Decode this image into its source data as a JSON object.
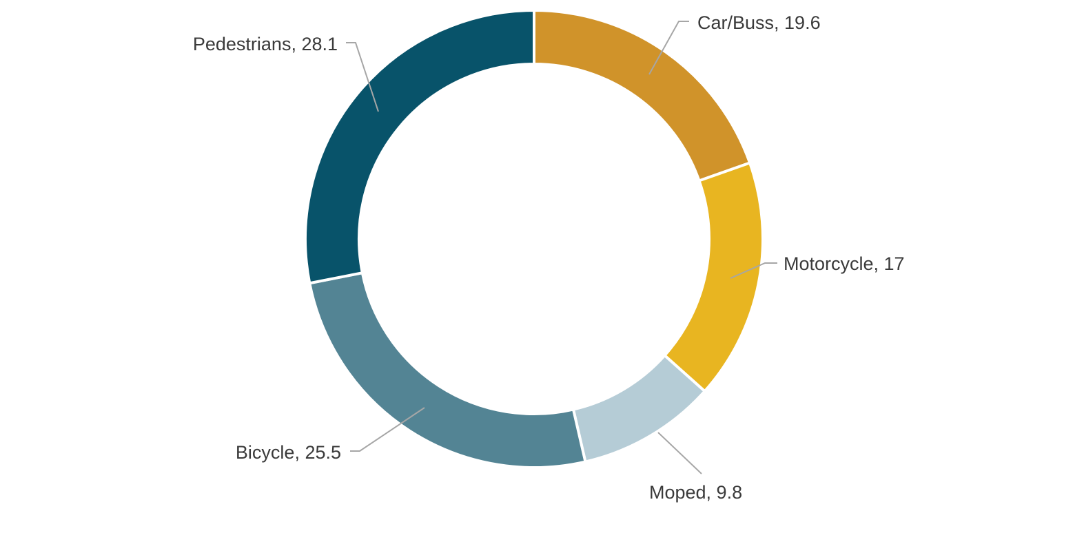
{
  "chart_data": {
    "type": "donut",
    "title": "",
    "legend": "none",
    "slices": [
      {
        "name": "Car/Buss",
        "value": 19.6,
        "label": "Car/Buss, 19.6",
        "color": "#D0932A"
      },
      {
        "name": "Motorcycle",
        "value": 17,
        "label": "Motorcycle, 17",
        "color": "#E8B521"
      },
      {
        "name": "Moped",
        "value": 9.8,
        "label": "Moped, 9.8",
        "color": "#B5CCD6"
      },
      {
        "name": "Bicycle",
        "value": 25.5,
        "label": "Bicycle, 25.5",
        "color": "#538494"
      },
      {
        "name": "Pedestrians",
        "value": 28.1,
        "label": "Pedestrians, 28.1",
        "color": "#08536A"
      }
    ]
  }
}
